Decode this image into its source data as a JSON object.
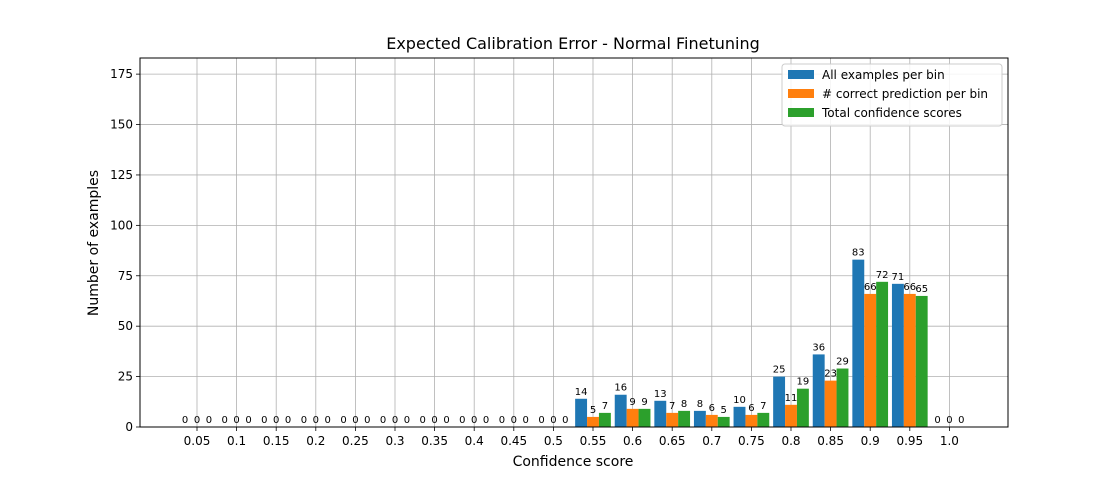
{
  "chart_data": {
    "type": "bar",
    "title": "Expected Calibration Error - Normal Finetuning",
    "xlabel": "Confidence score",
    "ylabel": "Number of examples",
    "ylim": [
      0,
      183
    ],
    "yticks": [
      0,
      25,
      50,
      75,
      100,
      125,
      150,
      175
    ],
    "grid": true,
    "legend_position": "top-right",
    "categories": [
      "0.05",
      "0.1",
      "0.15",
      "0.2",
      "0.25",
      "0.3",
      "0.35",
      "0.4",
      "0.45",
      "0.5",
      "0.55",
      "0.6",
      "0.65",
      "0.7",
      "0.75",
      "0.8",
      "0.85",
      "0.9",
      "0.95",
      "1.0"
    ],
    "series": [
      {
        "name": "All examples per bin",
        "color": "#1f77b4",
        "values": [
          0,
          0,
          0,
          0,
          0,
          0,
          0,
          0,
          0,
          0,
          14,
          16,
          13,
          8,
          10,
          25,
          36,
          83,
          71,
          0
        ]
      },
      {
        "name": "# correct prediction per bin",
        "color": "#ff7f0e",
        "values": [
          0,
          0,
          0,
          0,
          0,
          0,
          0,
          0,
          0,
          0,
          5,
          9,
          7,
          6,
          6,
          11,
          23,
          66,
          66,
          0
        ]
      },
      {
        "name": "Total confidence scores",
        "color": "#2ca02c",
        "values": [
          0,
          0,
          0,
          0,
          0,
          0,
          0,
          0,
          0,
          0,
          7,
          9,
          8,
          5,
          7,
          19,
          29,
          72,
          65,
          0
        ]
      }
    ]
  }
}
